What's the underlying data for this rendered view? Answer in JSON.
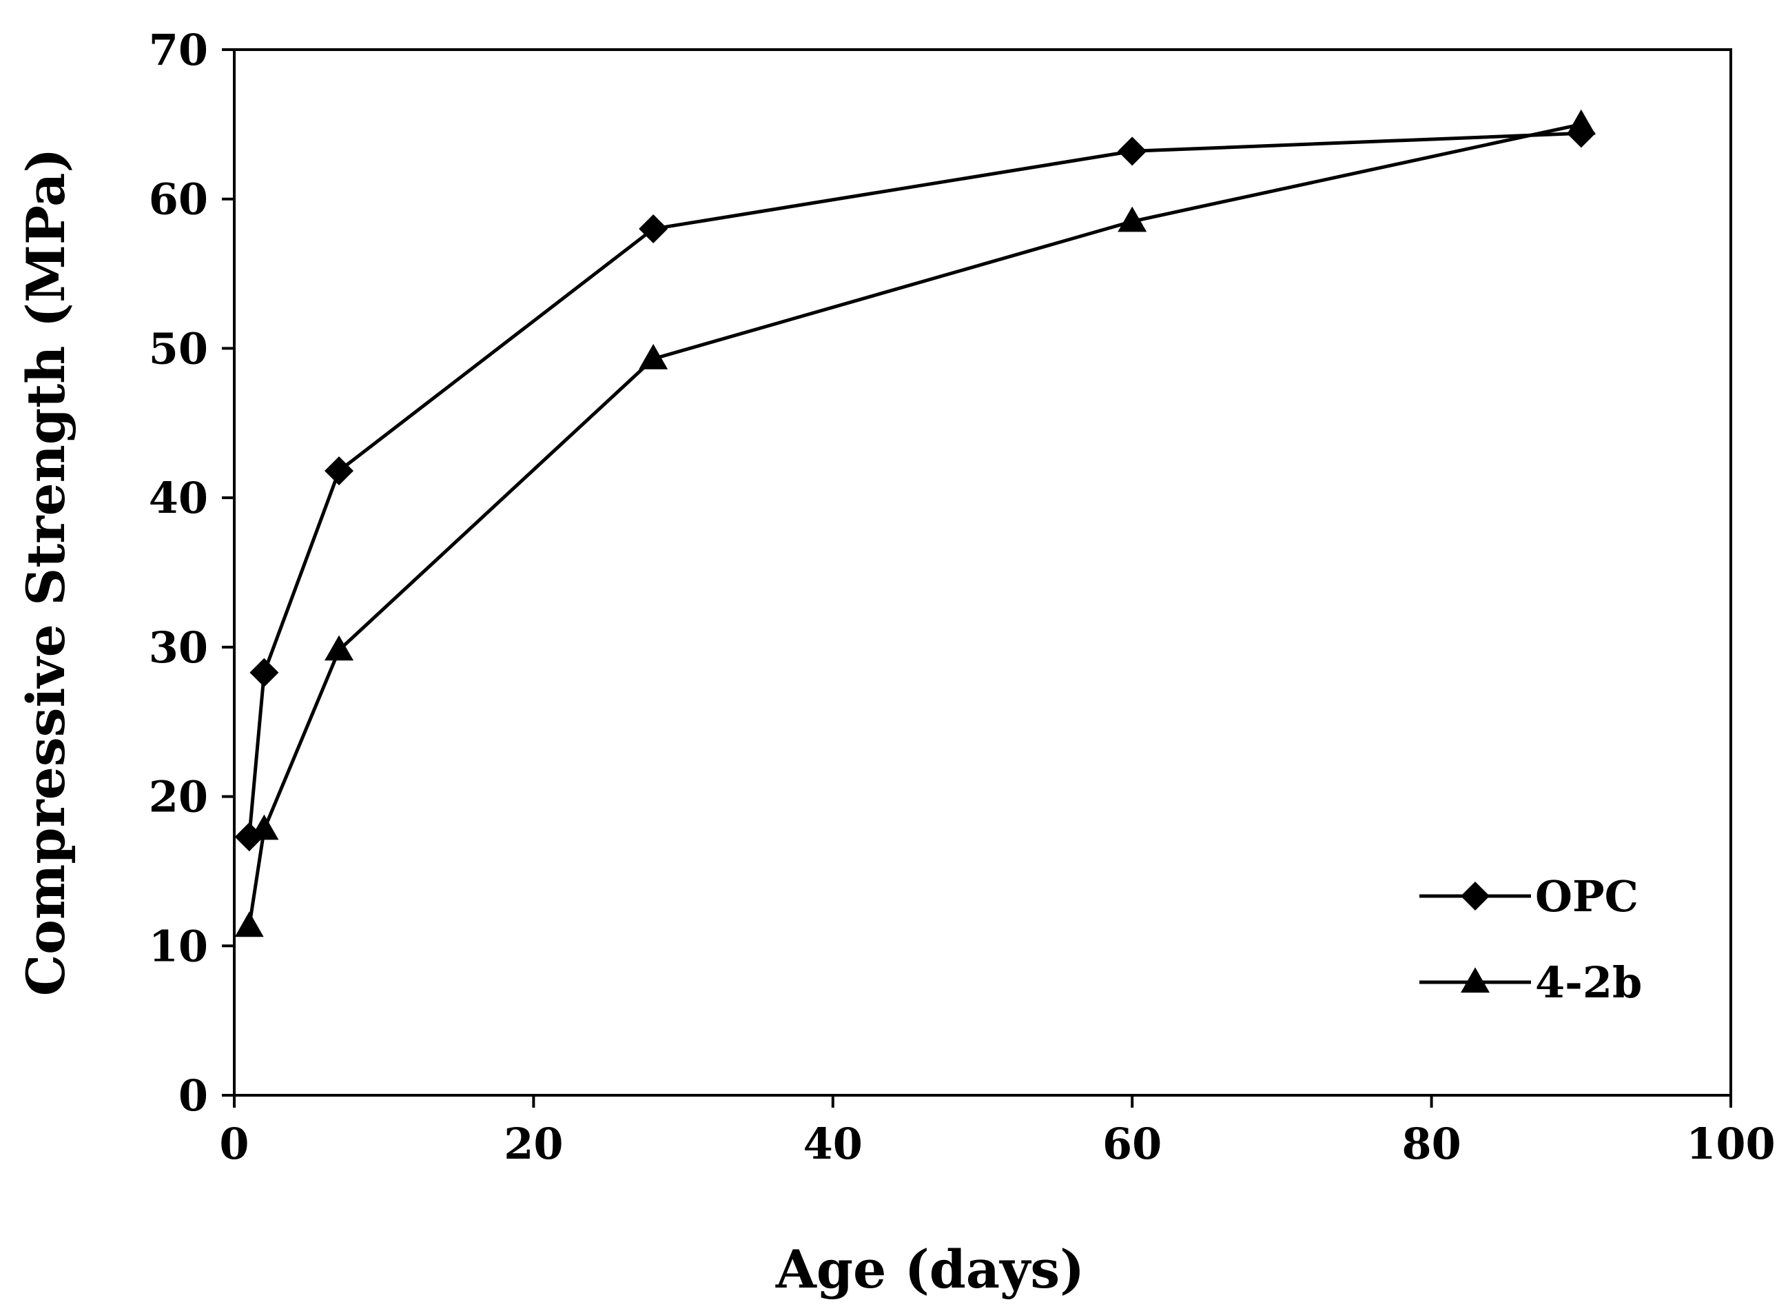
{
  "chart_data": {
    "type": "line",
    "title": "",
    "xlabel": "Age (days)",
    "ylabel": "Compressive Strength (MPa)",
    "xlim": [
      0,
      100
    ],
    "ylim": [
      0,
      70
    ],
    "xticks": [
      0,
      20,
      40,
      60,
      80,
      100
    ],
    "yticks": [
      0,
      10,
      20,
      30,
      40,
      50,
      60,
      70
    ],
    "grid": false,
    "legend_position": "bottom-right",
    "series": [
      {
        "name": "OPC",
        "marker": "diamond",
        "color": "#000000",
        "x": [
          1,
          2,
          7,
          28,
          60,
          90
        ],
        "y": [
          17.3,
          28.3,
          41.8,
          58.0,
          63.2,
          64.4
        ]
      },
      {
        "name": "4-2b",
        "marker": "triangle",
        "color": "#000000",
        "x": [
          1,
          2,
          7,
          28,
          60,
          90
        ],
        "y": [
          11.3,
          17.8,
          29.8,
          49.3,
          58.5,
          65.0
        ]
      }
    ]
  }
}
